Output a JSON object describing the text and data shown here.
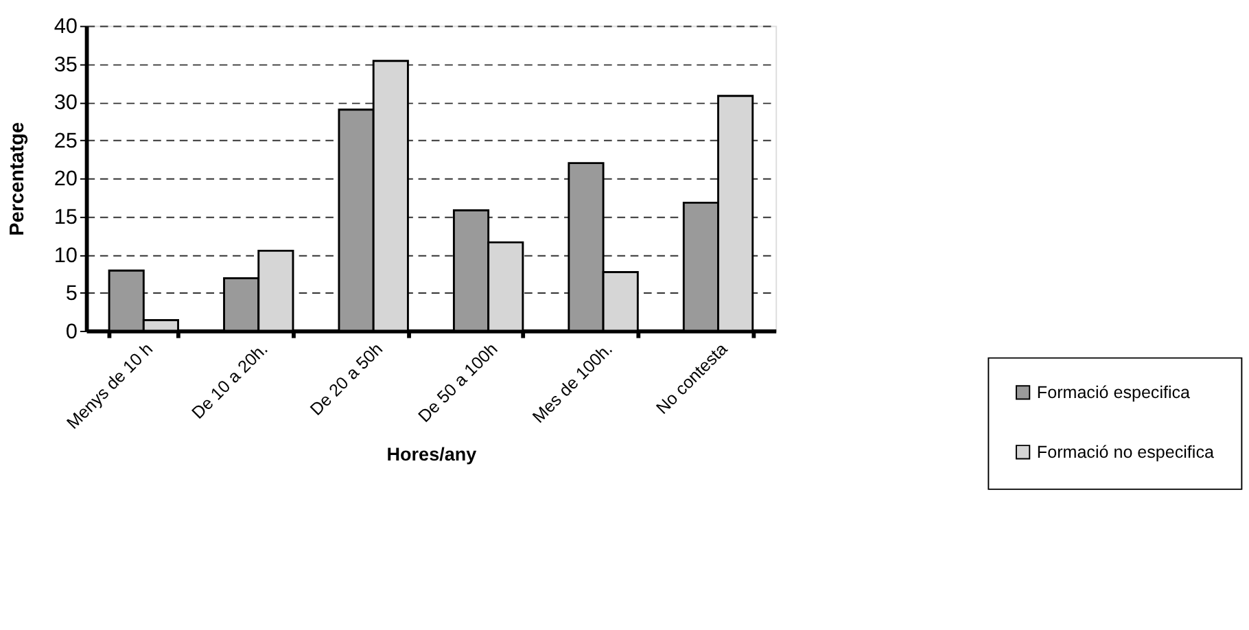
{
  "chart_data": {
    "type": "bar",
    "xlabel": "Hores/any",
    "ylabel": "Percentatge",
    "categories": [
      "Menys de 10 h",
      "De 10 a 20h.",
      "De 20 a 50h",
      "De 50 a 100h",
      "Mes de 100h.",
      "No contesta"
    ],
    "series": [
      {
        "name": "Formació especifica",
        "color": "#9a9a9a",
        "values": [
          7.9,
          6.9,
          29,
          15.8,
          22,
          16.8
        ]
      },
      {
        "name": "Formació no especifica",
        "color": "#d6d6d6",
        "values": [
          1.4,
          10.5,
          35.4,
          11.6,
          7.7,
          30.8
        ]
      }
    ],
    "ylim": [
      0,
      40
    ],
    "yticks": [
      0,
      5,
      10,
      15,
      20,
      25,
      30,
      35,
      40
    ],
    "grid": "y",
    "line_style": "dashed",
    "legend": "bottom right"
  }
}
